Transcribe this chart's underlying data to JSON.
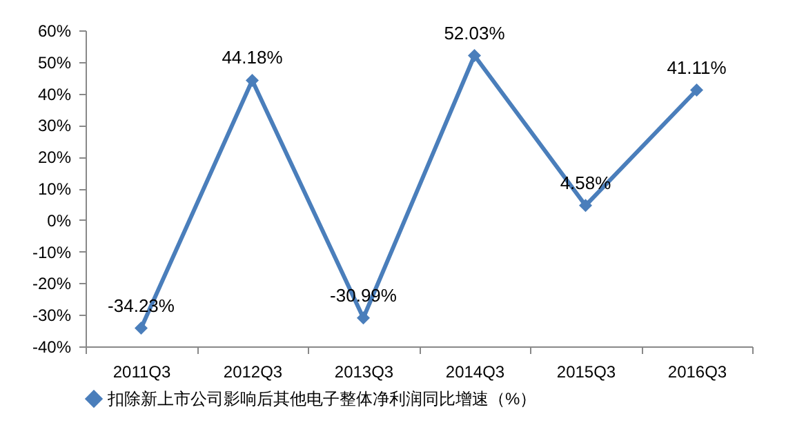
{
  "chart_data": {
    "type": "line",
    "categories": [
      "2011Q3",
      "2012Q3",
      "2013Q3",
      "2014Q3",
      "2015Q3",
      "2016Q3"
    ],
    "series": [
      {
        "name": "扣除新上市公司影响后其他电子整体净利润同比增速（%）",
        "color": "#4a7ebb",
        "values": [
          -34.23,
          44.18,
          -30.99,
          52.03,
          4.58,
          41.11
        ],
        "value_labels": [
          "-34.23%",
          "44.18%",
          "-30.99%",
          "52.03%",
          "4.58%",
          "41.11%"
        ]
      }
    ],
    "ylim": [
      -40,
      60
    ],
    "yticks": [
      {
        "value": -40,
        "label": "-40%"
      },
      {
        "value": -30,
        "label": "-30%"
      },
      {
        "value": -20,
        "label": "-20%"
      },
      {
        "value": -10,
        "label": "-10%"
      },
      {
        "value": 0,
        "label": "0%"
      },
      {
        "value": 10,
        "label": "10%"
      },
      {
        "value": 20,
        "label": "20%"
      },
      {
        "value": 30,
        "label": "30%"
      },
      {
        "value": 40,
        "label": "40%"
      },
      {
        "value": 50,
        "label": "50%"
      },
      {
        "value": 60,
        "label": "60%"
      }
    ],
    "grid": false,
    "legend": "bottom",
    "marker": "diamond",
    "line_style": "solid"
  }
}
